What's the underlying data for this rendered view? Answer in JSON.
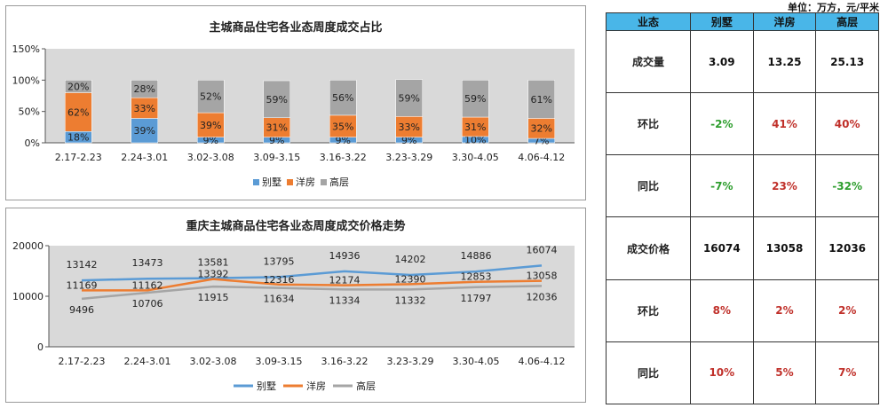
{
  "unit_label": "单位：万方，元/平米",
  "colors": {
    "villa": "#5b9bd5",
    "apartment": "#ed7d31",
    "highrise": "#a5a5a5",
    "table_header": "#49b6e8",
    "positive": "#c0302a",
    "negative": "#2f9e2f"
  },
  "chart_data": [
    {
      "type": "bar",
      "stacked": true,
      "title": "主城商品住宅各业态周度成交占比",
      "categories": [
        "2.17-2.23",
        "2.24-3.01",
        "3.02-3.08",
        "3.09-3.15",
        "3.16-3.22",
        "3.23-3.29",
        "3.30-4.05",
        "4.06-4.12"
      ],
      "series": [
        {
          "name": "别墅",
          "values": [
            18,
            39,
            9,
            9,
            9,
            9,
            10,
            7
          ],
          "labels": [
            "18%",
            "39%",
            "9%",
            "9%",
            "9%",
            "9%",
            "10%",
            "7%"
          ]
        },
        {
          "name": "洋房",
          "values": [
            62,
            33,
            39,
            31,
            35,
            33,
            31,
            32
          ],
          "labels": [
            "62%",
            "33%",
            "39%",
            "31%",
            "35%",
            "33%",
            "31%",
            "32%"
          ]
        },
        {
          "name": "高层",
          "values": [
            20,
            28,
            52,
            59,
            56,
            59,
            59,
            61
          ],
          "labels": [
            "20%",
            "28%",
            "52%",
            "59%",
            "56%",
            "59%",
            "59%",
            "61%"
          ]
        }
      ],
      "yticks": [
        "0%",
        "50%",
        "100%",
        "150%"
      ],
      "ylim": [
        0,
        150
      ],
      "legend": "bottom",
      "grid": false
    },
    {
      "type": "line",
      "title": "重庆主城商品住宅各业态周度成交价格走势",
      "categories": [
        "2.17-2.23",
        "2.24-3.01",
        "3.02-3.08",
        "3.09-3.15",
        "3.16-3.22",
        "3.23-3.29",
        "3.30-4.05",
        "4.06-4.12"
      ],
      "series": [
        {
          "name": "别墅",
          "values": [
            13142,
            13473,
            13581,
            13795,
            14936,
            14202,
            14886,
            16074
          ]
        },
        {
          "name": "洋房",
          "values": [
            11169,
            11162,
            13392,
            12316,
            12174,
            12390,
            12853,
            13058
          ]
        },
        {
          "name": "高层",
          "values": [
            9496,
            10706,
            11915,
            11634,
            11334,
            11332,
            11797,
            12036
          ]
        }
      ],
      "yticks": [
        "0",
        "10000",
        "20000"
      ],
      "ylim": [
        0,
        20000
      ],
      "legend": "bottom",
      "grid": false
    }
  ],
  "table": {
    "headers": [
      "业态",
      "别墅",
      "洋房",
      "高层"
    ],
    "rows": [
      {
        "label": "成交量",
        "cells": [
          {
            "v": "3.09",
            "c": "black"
          },
          {
            "v": "13.25",
            "c": "black"
          },
          {
            "v": "25.13",
            "c": "black"
          }
        ]
      },
      {
        "label": "环比",
        "cells": [
          {
            "v": "-2%",
            "c": "green"
          },
          {
            "v": "41%",
            "c": "red"
          },
          {
            "v": "40%",
            "c": "red"
          }
        ]
      },
      {
        "label": "同比",
        "cells": [
          {
            "v": "-7%",
            "c": "green"
          },
          {
            "v": "23%",
            "c": "red"
          },
          {
            "v": "-32%",
            "c": "green"
          }
        ]
      },
      {
        "label": "成交价格",
        "cells": [
          {
            "v": "16074",
            "c": "black"
          },
          {
            "v": "13058",
            "c": "black"
          },
          {
            "v": "12036",
            "c": "black"
          }
        ]
      },
      {
        "label": "环比",
        "cells": [
          {
            "v": "8%",
            "c": "red"
          },
          {
            "v": "2%",
            "c": "red"
          },
          {
            "v": "2%",
            "c": "red"
          }
        ]
      },
      {
        "label": "同比",
        "cells": [
          {
            "v": "10%",
            "c": "red"
          },
          {
            "v": "5%",
            "c": "red"
          },
          {
            "v": "7%",
            "c": "red"
          }
        ]
      }
    ]
  }
}
